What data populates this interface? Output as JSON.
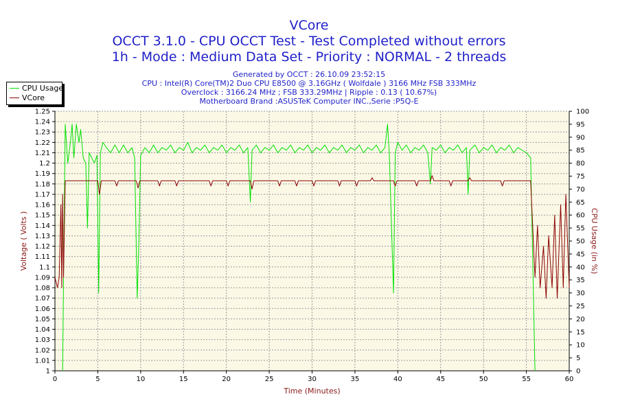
{
  "chart_data": {
    "type": "line",
    "title": "VCore",
    "subtitle": [
      "OCCT 3.1.0 - CPU OCCT Test - Test Completed without errors",
      "1h - Mode : Medium Data Set - Priority : NORMAL - 2 threads"
    ],
    "info": [
      "Generated by OCCT : 26.10.09 23:52:15",
      "CPU : Intel(R) Core(TM)2 Duo CPU E8500 @ 3.16GHz ( Wolfdale ) 3166 MHz FSB 333MHz",
      "Overclock : 3166.24 MHz ; FSB 333.29MHz | Ripple : 0.13 ( 10.67%)",
      "Motherboard Brand :ASUSTeK Computer INC.,Serie :P5Q-E"
    ],
    "xlabel": "Time (Minutes)",
    "ylabel": "Voltage ( Volts )",
    "y2label": "CPU Usage (in %)",
    "xlim": [
      0,
      60
    ],
    "ylim": [
      1,
      1.25
    ],
    "y2lim": [
      0,
      100
    ],
    "x_ticks": [
      "0",
      "5",
      "10",
      "15",
      "20",
      "25",
      "30",
      "35",
      "40",
      "45",
      "50",
      "55",
      "60"
    ],
    "y_ticks": [
      "1",
      "1.01",
      "1.02",
      "1.03",
      "1.04",
      "1.05",
      "1.06",
      "1.07",
      "1.08",
      "1.09",
      "1.1",
      "1.11",
      "1.12",
      "1.13",
      "1.14",
      "1.15",
      "1.16",
      "1.17",
      "1.18",
      "1.19",
      "1.2",
      "1.21",
      "1.22",
      "1.23",
      "1.24",
      "1.25"
    ],
    "y2_ticks": [
      "0",
      "5",
      "10",
      "15",
      "20",
      "25",
      "30",
      "35",
      "40",
      "45",
      "50",
      "55",
      "60",
      "65",
      "70",
      "75",
      "80",
      "85",
      "90",
      "95",
      "100"
    ],
    "grid": true,
    "legend_position": "top-left",
    "series": [
      {
        "name": "CPU Usage",
        "axis": "right",
        "color": "#00e000",
        "points": [
          [
            0.9,
            0
          ],
          [
            1.0,
            35
          ],
          [
            1.2,
            95
          ],
          [
            1.5,
            80
          ],
          [
            1.8,
            88
          ],
          [
            2.0,
            95
          ],
          [
            2.2,
            82
          ],
          [
            2.5,
            95
          ],
          [
            2.8,
            88
          ],
          [
            3.0,
            93
          ],
          [
            3.3,
            82
          ],
          [
            3.6,
            80
          ],
          [
            3.8,
            55
          ],
          [
            4.0,
            84
          ],
          [
            4.3,
            82
          ],
          [
            4.6,
            80
          ],
          [
            4.9,
            83
          ],
          [
            5.1,
            30
          ],
          [
            5.3,
            84
          ],
          [
            5.6,
            88
          ],
          [
            6,
            86
          ],
          [
            6.5,
            84
          ],
          [
            7,
            87
          ],
          [
            7.5,
            84
          ],
          [
            8,
            87
          ],
          [
            8.5,
            84
          ],
          [
            9,
            86
          ],
          [
            9.3,
            82
          ],
          [
            9.6,
            28
          ],
          [
            9.8,
            50
          ],
          [
            10,
            83
          ],
          [
            10.5,
            86
          ],
          [
            11,
            84
          ],
          [
            11.5,
            87
          ],
          [
            12,
            84
          ],
          [
            12.5,
            86
          ],
          [
            13,
            85
          ],
          [
            13.5,
            87
          ],
          [
            14,
            84
          ],
          [
            14.5,
            86
          ],
          [
            15,
            85
          ],
          [
            15.5,
            88
          ],
          [
            16,
            84
          ],
          [
            16.5,
            86
          ],
          [
            17,
            85
          ],
          [
            17.5,
            87
          ],
          [
            18,
            84
          ],
          [
            18.5,
            86
          ],
          [
            19,
            85
          ],
          [
            19.5,
            87
          ],
          [
            20,
            84
          ],
          [
            20.5,
            86
          ],
          [
            21,
            85
          ],
          [
            21.5,
            87
          ],
          [
            22,
            84
          ],
          [
            22.5,
            86
          ],
          [
            22.8,
            65
          ],
          [
            23,
            85
          ],
          [
            23.5,
            87
          ],
          [
            24,
            84
          ],
          [
            24.5,
            86
          ],
          [
            25,
            85
          ],
          [
            25.5,
            87
          ],
          [
            26,
            84
          ],
          [
            26.5,
            86
          ],
          [
            27,
            85
          ],
          [
            27.5,
            87
          ],
          [
            28,
            84
          ],
          [
            28.5,
            86
          ],
          [
            29,
            85
          ],
          [
            29.5,
            87
          ],
          [
            30,
            84
          ],
          [
            30.5,
            86
          ],
          [
            31,
            85
          ],
          [
            31.5,
            87
          ],
          [
            32,
            84
          ],
          [
            32.5,
            86
          ],
          [
            33,
            85
          ],
          [
            33.5,
            87
          ],
          [
            34,
            84
          ],
          [
            34.5,
            86
          ],
          [
            35,
            85
          ],
          [
            35.5,
            87
          ],
          [
            36,
            84
          ],
          [
            36.5,
            86
          ],
          [
            37,
            85
          ],
          [
            37.5,
            87
          ],
          [
            38,
            84
          ],
          [
            38.5,
            86
          ],
          [
            38.8,
            95
          ],
          [
            39,
            84
          ],
          [
            39.5,
            30
          ],
          [
            39.7,
            84
          ],
          [
            40,
            88
          ],
          [
            40.5,
            85
          ],
          [
            41,
            87
          ],
          [
            41.5,
            84
          ],
          [
            42,
            86
          ],
          [
            42.5,
            85
          ],
          [
            43,
            87
          ],
          [
            43.5,
            84
          ],
          [
            43.8,
            72
          ],
          [
            44,
            86
          ],
          [
            44.5,
            85
          ],
          [
            45,
            87
          ],
          [
            45.5,
            84
          ],
          [
            46,
            86
          ],
          [
            46.5,
            85
          ],
          [
            47,
            87
          ],
          [
            47.5,
            84
          ],
          [
            48,
            86
          ],
          [
            48.2,
            68
          ],
          [
            48.4,
            85
          ],
          [
            49,
            87
          ],
          [
            49.5,
            84
          ],
          [
            50,
            86
          ],
          [
            50.5,
            85
          ],
          [
            51,
            87
          ],
          [
            51.5,
            84
          ],
          [
            52,
            86
          ],
          [
            52.5,
            85
          ],
          [
            53,
            87
          ],
          [
            53.5,
            84
          ],
          [
            54,
            86
          ],
          [
            54.5,
            85
          ],
          [
            55,
            84
          ],
          [
            55.5,
            82
          ],
          [
            56,
            0
          ]
        ]
      },
      {
        "name": "VCore",
        "axis": "left",
        "color": "#8b0000",
        "points": [
          [
            0,
            1.09
          ],
          [
            0.3,
            1.08
          ],
          [
            0.5,
            1.09
          ],
          [
            0.7,
            1.16
          ],
          [
            0.8,
            1.08
          ],
          [
            0.9,
            1.17
          ],
          [
            1.0,
            1.09
          ],
          [
            1.2,
            1.183
          ],
          [
            5.0,
            1.183
          ],
          [
            5.2,
            1.17
          ],
          [
            5.4,
            1.183
          ],
          [
            7,
            1.183
          ],
          [
            7.2,
            1.178
          ],
          [
            7.4,
            1.183
          ],
          [
            9.5,
            1.183
          ],
          [
            9.7,
            1.176
          ],
          [
            9.9,
            1.183
          ],
          [
            12,
            1.183
          ],
          [
            12.2,
            1.178
          ],
          [
            12.4,
            1.183
          ],
          [
            14,
            1.183
          ],
          [
            14.2,
            1.178
          ],
          [
            14.4,
            1.183
          ],
          [
            18,
            1.183
          ],
          [
            18.2,
            1.178
          ],
          [
            18.4,
            1.183
          ],
          [
            20,
            1.183
          ],
          [
            20.2,
            1.178
          ],
          [
            20.4,
            1.183
          ],
          [
            22.8,
            1.183
          ],
          [
            23,
            1.175
          ],
          [
            23.2,
            1.183
          ],
          [
            26,
            1.183
          ],
          [
            26.2,
            1.178
          ],
          [
            26.4,
            1.183
          ],
          [
            28,
            1.183
          ],
          [
            28.2,
            1.178
          ],
          [
            28.4,
            1.183
          ],
          [
            30,
            1.183
          ],
          [
            30.2,
            1.178
          ],
          [
            30.4,
            1.183
          ],
          [
            33,
            1.183
          ],
          [
            33.2,
            1.178
          ],
          [
            33.4,
            1.183
          ],
          [
            35,
            1.183
          ],
          [
            35.2,
            1.178
          ],
          [
            35.4,
            1.183
          ],
          [
            36.8,
            1.183
          ],
          [
            37,
            1.186
          ],
          [
            37.2,
            1.183
          ],
          [
            39.5,
            1.183
          ],
          [
            39.7,
            1.178
          ],
          [
            39.9,
            1.183
          ],
          [
            42,
            1.183
          ],
          [
            42.2,
            1.178
          ],
          [
            42.4,
            1.183
          ],
          [
            43.8,
            1.183
          ],
          [
            44,
            1.188
          ],
          [
            44.2,
            1.183
          ],
          [
            46,
            1.183
          ],
          [
            46.2,
            1.178
          ],
          [
            46.4,
            1.183
          ],
          [
            48.2,
            1.183
          ],
          [
            48.4,
            1.186
          ],
          [
            48.6,
            1.183
          ],
          [
            52,
            1.183
          ],
          [
            52.2,
            1.178
          ],
          [
            52.4,
            1.183
          ],
          [
            55.5,
            1.183
          ],
          [
            56,
            1.09
          ],
          [
            56.3,
            1.14
          ],
          [
            56.6,
            1.08
          ],
          [
            57,
            1.12
          ],
          [
            57.3,
            1.07
          ],
          [
            57.6,
            1.13
          ],
          [
            58,
            1.08
          ],
          [
            58.3,
            1.15
          ],
          [
            58.6,
            1.07
          ],
          [
            59,
            1.16
          ],
          [
            59.3,
            1.08
          ],
          [
            59.6,
            1.17
          ],
          [
            60,
            1.08
          ]
        ]
      }
    ]
  },
  "legend": {
    "items": [
      {
        "label": "CPU Usage",
        "color": "#00e000"
      },
      {
        "label": "VCore",
        "color": "#8b0000"
      }
    ]
  }
}
